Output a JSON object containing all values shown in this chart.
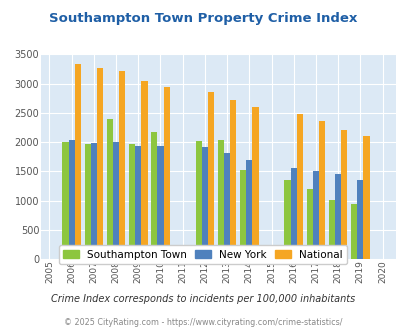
{
  "title": "Southampton Town Property Crime Index",
  "years": [
    2006,
    2007,
    2008,
    2009,
    2010,
    2012,
    2013,
    2014,
    2016,
    2017,
    2018,
    2019
  ],
  "southampton": [
    2000,
    1960,
    2400,
    1960,
    2180,
    2020,
    2040,
    1520,
    1360,
    1190,
    1010,
    950
  ],
  "new_york": [
    2040,
    1980,
    2000,
    1940,
    1940,
    1910,
    1820,
    1700,
    1550,
    1500,
    1450,
    1360
  ],
  "national": [
    3340,
    3260,
    3210,
    3040,
    2950,
    2860,
    2720,
    2600,
    2480,
    2370,
    2200,
    2110
  ],
  "color_southampton": "#8dc63f",
  "color_new_york": "#4f81bd",
  "color_national": "#f5a623",
  "ylim": [
    0,
    3500
  ],
  "yticks": [
    0,
    500,
    1000,
    1500,
    2000,
    2500,
    3000,
    3500
  ],
  "xtick_years": [
    2005,
    2006,
    2007,
    2008,
    2009,
    2010,
    2011,
    2012,
    2013,
    2014,
    2015,
    2016,
    2017,
    2018,
    2019,
    2020
  ],
  "title_color": "#1f5fa6",
  "bg_color": "#dce9f5",
  "grid_color": "#ffffff",
  "subtitle": "Crime Index corresponds to incidents per 100,000 inhabitants",
  "footer": "© 2025 CityRating.com - https://www.cityrating.com/crime-statistics/",
  "legend_labels": [
    "Southampton Town",
    "New York",
    "National"
  ],
  "bar_width": 0.28
}
